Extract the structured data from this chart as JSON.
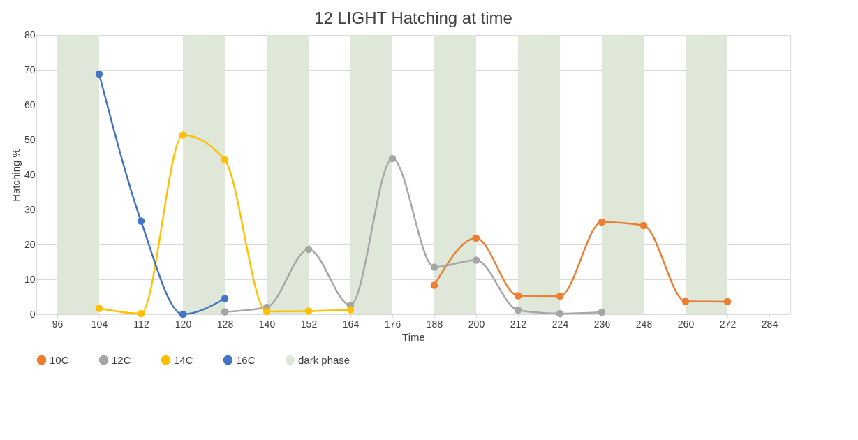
{
  "chart_data": {
    "type": "line",
    "title": "12 LIGHT Hatching at time",
    "xlabel": "Time",
    "ylabel": "Hatching %",
    "categories": [
      "96",
      "104",
      "112",
      "120",
      "128",
      "140",
      "152",
      "164",
      "176",
      "188",
      "200",
      "212",
      "224",
      "236",
      "248",
      "260",
      "272",
      "284"
    ],
    "series": [
      {
        "name": "10C",
        "color": "#ed7d31",
        "values": [
          null,
          null,
          null,
          null,
          null,
          null,
          null,
          null,
          null,
          8.3,
          21.8,
          5.3,
          5.2,
          26.4,
          25.4,
          3.7,
          3.6,
          null
        ]
      },
      {
        "name": "12C",
        "color": "#a5a5a5",
        "values": [
          null,
          null,
          null,
          null,
          0.7,
          2.0,
          18.6,
          2.6,
          44.6,
          13.5,
          15.5,
          1.2,
          0.2,
          0.6,
          null,
          null,
          null,
          null
        ]
      },
      {
        "name": "14C",
        "color": "#ffc000",
        "values": [
          null,
          1.7,
          0.2,
          51.3,
          44.2,
          0.8,
          0.9,
          1.3,
          null,
          null,
          null,
          null,
          null,
          null,
          null,
          null,
          null,
          null
        ]
      },
      {
        "name": "16C",
        "color": "#4472c4",
        "values": [
          null,
          68.8,
          26.7,
          0,
          4.5,
          null,
          null,
          null,
          null,
          null,
          null,
          null,
          null,
          null,
          null,
          null,
          null,
          null
        ]
      }
    ],
    "bands": [
      {
        "axis": "x",
        "from": "96",
        "to": "104",
        "label": "dark phase",
        "color": "#dfe7d8"
      },
      {
        "axis": "x",
        "from": "120",
        "to": "128",
        "color": "#dfe7d8"
      },
      {
        "axis": "x",
        "from": "140",
        "to": "152",
        "color": "#dfe7d8"
      },
      {
        "axis": "x",
        "from": "164",
        "to": "176",
        "color": "#dfe7d8"
      },
      {
        "axis": "x",
        "from": "188",
        "to": "200",
        "color": "#dfe7d8"
      },
      {
        "axis": "x",
        "from": "212",
        "to": "224",
        "color": "#dfe7d8"
      },
      {
        "axis": "x",
        "from": "236",
        "to": "248",
        "color": "#dfe7d8"
      },
      {
        "axis": "x",
        "from": "260",
        "to": "272",
        "color": "#dfe7d8"
      }
    ],
    "ylim": [
      0,
      80
    ],
    "yticks": [
      0,
      10,
      20,
      30,
      40,
      50,
      60,
      70,
      80
    ],
    "grid": "y",
    "legend": "bottom",
    "marker": "circle",
    "line_style": "solid"
  }
}
